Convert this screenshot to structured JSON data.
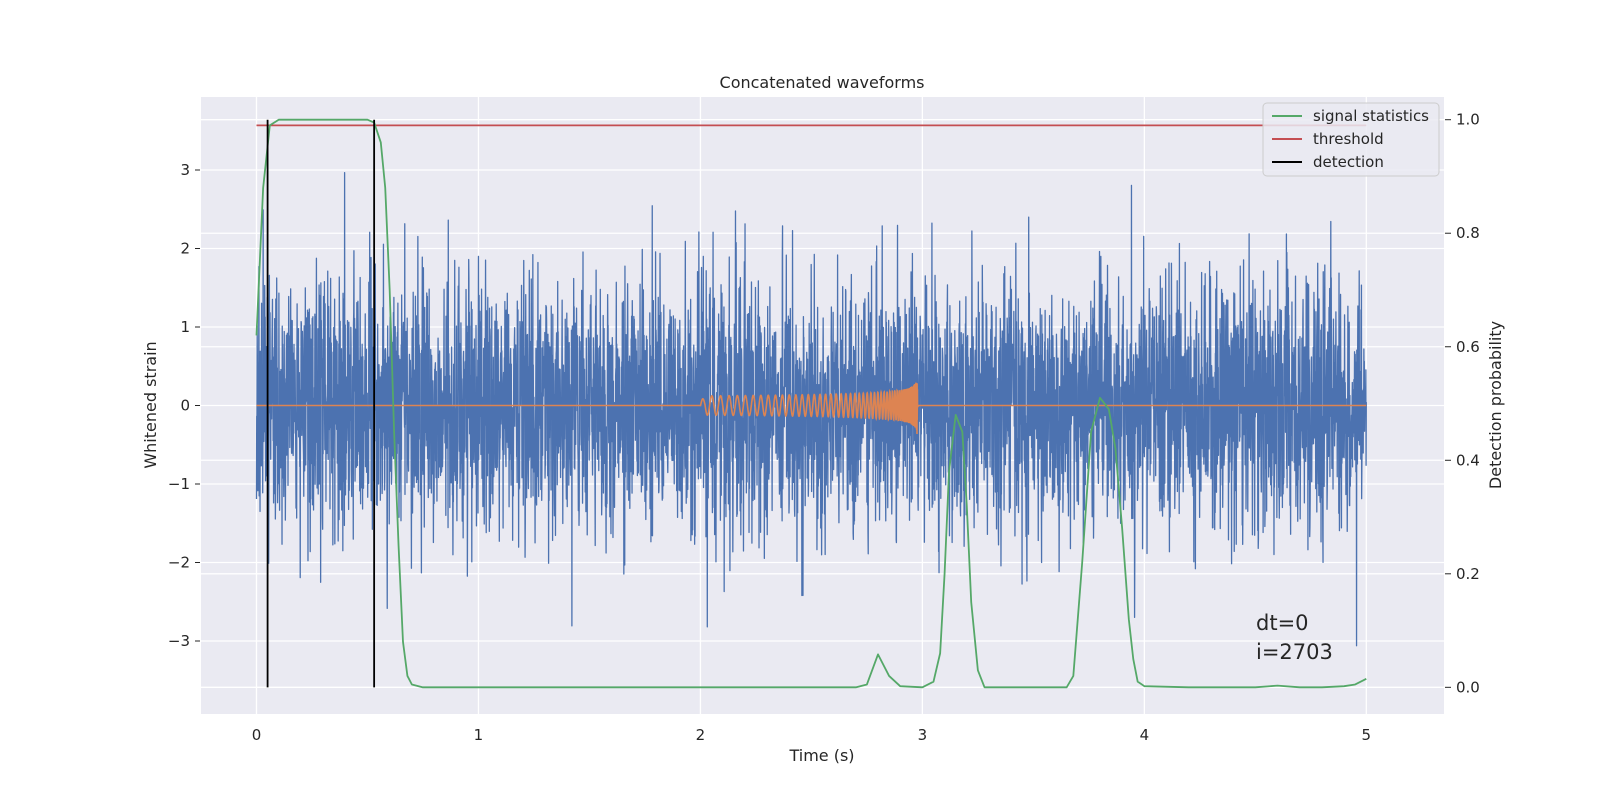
{
  "chart_data": {
    "type": "line",
    "title": "Concatenated waveforms",
    "xlabel": "Time (s)",
    "ylabel": "Whitened strain",
    "y2label": "Detection probability",
    "xlim": [
      -0.25,
      5.35
    ],
    "ylim": [
      -3.93,
      3.93
    ],
    "y2lim": [
      -0.047,
      1.04
    ],
    "xticks": [
      0,
      1,
      2,
      3,
      4,
      5
    ],
    "yticks": [
      -3,
      -2,
      -1,
      0,
      1,
      2,
      3
    ],
    "y2ticks": [
      0.0,
      0.2,
      0.4,
      0.6,
      0.8,
      1.0
    ],
    "xtick_labels": [
      "0",
      "1",
      "2",
      "3",
      "4",
      "5"
    ],
    "ytick_labels": [
      "−3",
      "−2",
      "−1",
      "0",
      "1",
      "2",
      "3"
    ],
    "y2tick_labels": [
      "0.0",
      "0.2",
      "0.4",
      "0.6",
      "0.8",
      "1.0"
    ],
    "grid": true,
    "legend": {
      "placement": "top-right",
      "entries": [
        {
          "label": "signal statistics",
          "color": "#55a868"
        },
        {
          "label": "threshold",
          "color": "#c44e52"
        },
        {
          "label": "detection",
          "color": "#000000"
        }
      ]
    },
    "annotations": [
      "dt=0",
      "i=2703"
    ],
    "series": [
      {
        "name": "whitened strain noise",
        "color": "#4c72b0",
        "axis": "left",
        "x_range": [
          0,
          5
        ],
        "typical_amplitude": 0.75,
        "peak_amplitude": 3.55
      },
      {
        "name": "injected chirp",
        "color": "#dd8452",
        "axis": "left",
        "start": 2.0,
        "end": 2.98,
        "peak_amplitude": 0.75
      },
      {
        "name": "signal statistics",
        "color": "#55a868",
        "axis": "right",
        "x": [
          0,
          0.03,
          0.06,
          0.1,
          0.2,
          0.3,
          0.4,
          0.5,
          0.53,
          0.56,
          0.58,
          0.6,
          0.62,
          0.64,
          0.66,
          0.68,
          0.7,
          0.75,
          0.8,
          1.0,
          1.5,
          2.0,
          2.5,
          2.7,
          2.75,
          2.8,
          2.85,
          2.9,
          3.0,
          3.05,
          3.08,
          3.1,
          3.12,
          3.15,
          3.18,
          3.2,
          3.22,
          3.25,
          3.28,
          3.3,
          3.5,
          3.65,
          3.68,
          3.72,
          3.76,
          3.8,
          3.84,
          3.87,
          3.9,
          3.93,
          3.95,
          3.97,
          4.0,
          4.2,
          4.5,
          4.6,
          4.7,
          4.8,
          4.9,
          4.95,
          5.0
        ],
        "y": [
          0.62,
          0.88,
          0.99,
          1.0,
          1.0,
          1.0,
          1.0,
          1.0,
          0.995,
          0.96,
          0.88,
          0.7,
          0.45,
          0.25,
          0.08,
          0.02,
          0.005,
          0.0,
          0.0,
          0.0,
          0.0,
          0.0,
          0.0,
          0.0,
          0.005,
          0.058,
          0.02,
          0.002,
          0.0,
          0.01,
          0.06,
          0.2,
          0.38,
          0.48,
          0.45,
          0.32,
          0.15,
          0.03,
          0.0,
          0.0,
          0.0,
          0.0,
          0.02,
          0.22,
          0.45,
          0.51,
          0.49,
          0.42,
          0.28,
          0.12,
          0.05,
          0.01,
          0.002,
          0.0,
          0.0,
          0.003,
          0.0,
          0.0,
          0.002,
          0.005,
          0.015
        ]
      },
      {
        "name": "threshold",
        "color": "#c44e52",
        "axis": "right",
        "x": [
          0,
          5
        ],
        "y": [
          0.99,
          0.99
        ]
      },
      {
        "name": "detection",
        "color": "#000000",
        "axis": "right",
        "x_positions": [
          0.05,
          0.53
        ],
        "y_range": [
          0,
          1
        ]
      }
    ]
  }
}
